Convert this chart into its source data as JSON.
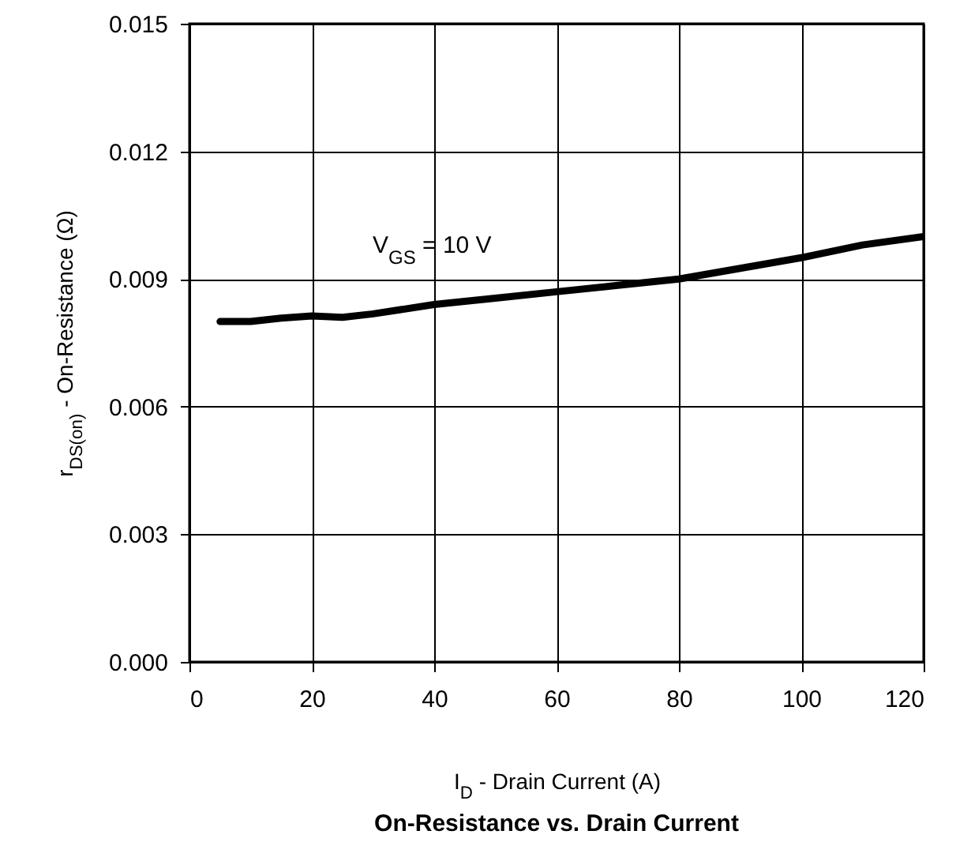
{
  "chart_data": {
    "type": "line",
    "title": "On-Resistance vs. Drain Current",
    "xlabel": "I$_{D}$ - Drain Current (A)",
    "ylabel": "r$_{DS(on)}$ - On-Resistance (Ω)",
    "x": [
      5,
      10,
      15,
      20,
      25,
      30,
      40,
      50,
      60,
      70,
      80,
      90,
      100,
      110,
      120
    ],
    "series": [
      {
        "color": "#000000",
        "values": [
          0.008,
          0.008,
          0.00808,
          0.00813,
          0.0081,
          0.00818,
          0.0084,
          0.00855,
          0.0087,
          0.00885,
          0.009,
          0.00925,
          0.0095,
          0.0098,
          0.01
        ]
      }
    ],
    "xlim": [
      0,
      120
    ],
    "xticks": [
      0,
      20,
      40,
      60,
      80,
      100,
      120
    ],
    "ylim": [
      0,
      0.015
    ],
    "yticks": [
      {
        "value": 0,
        "label": "0.000"
      },
      {
        "value": 0.003,
        "label": "0.003"
      },
      {
        "value": 0.006,
        "label": "0.006"
      },
      {
        "value": 0.009,
        "label": "0.009"
      },
      {
        "value": 0.012,
        "label": "0.012"
      },
      {
        "value": 0.015,
        "label": "0.015"
      }
    ],
    "annotations": [
      "V$_{GS}$ = 10 V"
    ],
    "grid": true,
    "marker": "none",
    "line_style": "solid"
  }
}
